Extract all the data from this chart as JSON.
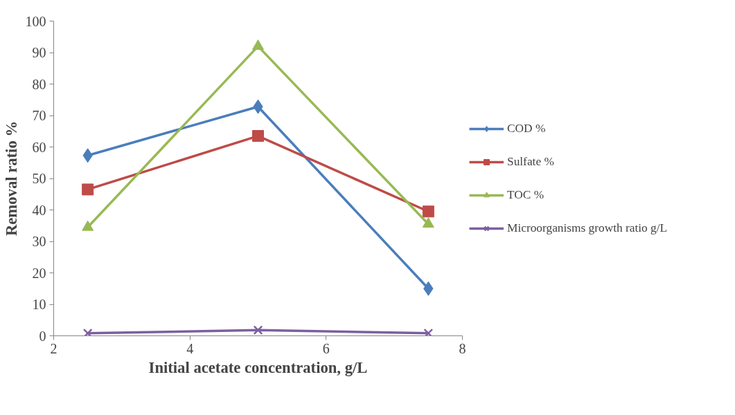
{
  "chart_data": {
    "type": "line",
    "xlabel": "Initial acetate concentration, g/L",
    "ylabel": "Removal ratio %",
    "x": [
      2.5,
      5,
      7.5
    ],
    "series": [
      {
        "name": "COD %",
        "color": "#4a7ebb",
        "marker": "diamond",
        "values": [
          57.3,
          72.8,
          15
        ]
      },
      {
        "name": "Sulfate %",
        "color": "#be4b48",
        "marker": "square",
        "values": [
          46.5,
          63.5,
          39.5
        ]
      },
      {
        "name": "TOC %",
        "color": "#98b954",
        "marker": "triangle",
        "values": [
          34.5,
          92,
          35.5
        ]
      },
      {
        "name": "Microorganisms growth ratio g/L",
        "color": "#7d5fa0",
        "marker": "cross",
        "values": [
          0.8,
          1.8,
          0.8
        ]
      }
    ],
    "xlim": [
      2,
      8
    ],
    "xticks": [
      2,
      4,
      6,
      8
    ],
    "ylim": [
      0,
      100
    ],
    "yticks": [
      0,
      10,
      20,
      30,
      40,
      50,
      60,
      70,
      80,
      90,
      100
    ],
    "grid": false,
    "legend": "right",
    "line_style": "solid"
  }
}
